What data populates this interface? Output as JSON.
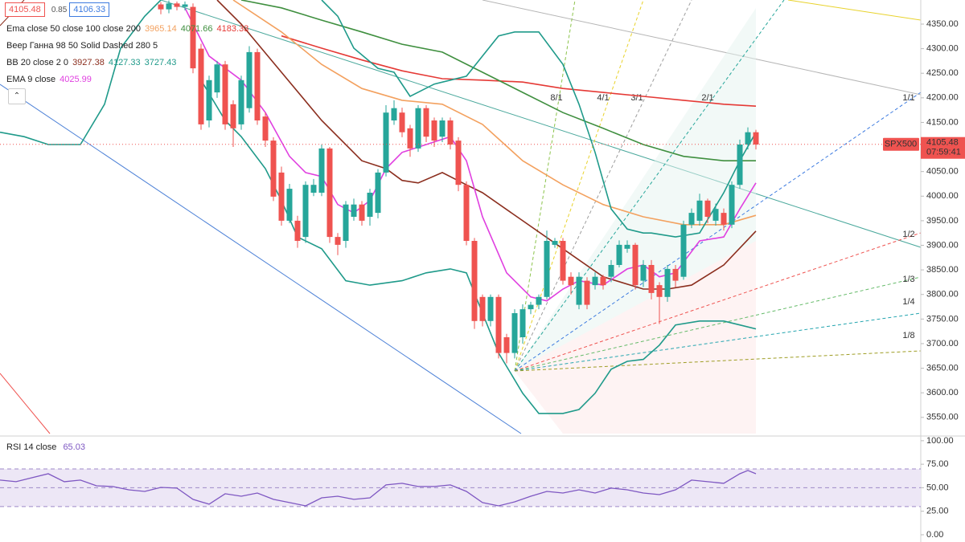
{
  "chart_data": [
    {
      "type": "candlestick",
      "symbol": "SPX500",
      "last_price": 4105.48,
      "time_label": "07:59:41",
      "bid": 4105.48,
      "spread": 0.85,
      "ask": 4106.33,
      "up_color": "#26a69a",
      "down_color": "#ef5350",
      "xlim": [
        -20,
        94.5
      ],
      "ylim": [
        3517,
        4399
      ],
      "yticks": [
        {
          "value": 3550,
          "label": "3550.00"
        },
        {
          "value": 3600,
          "label": "3600.00"
        },
        {
          "value": 3650,
          "label": "3650.00"
        },
        {
          "value": 3700,
          "label": "3700.00"
        },
        {
          "value": 3750,
          "label": "3750.00"
        },
        {
          "value": 3800,
          "label": "3800.00"
        },
        {
          "value": 3850,
          "label": "3850.00"
        },
        {
          "value": 3900,
          "label": "3900.00"
        },
        {
          "value": 3950,
          "label": "3950.00"
        },
        {
          "value": 4000,
          "label": "4000.00"
        },
        {
          "value": 4050,
          "label": "4050.00"
        },
        {
          "value": 4100,
          "label": "4100.00"
        },
        {
          "value": 4150,
          "label": "4150.00"
        },
        {
          "value": 4200,
          "label": "4200.00"
        },
        {
          "value": 4250,
          "label": "4250.00"
        },
        {
          "value": 4300,
          "label": "4300.00"
        },
        {
          "value": 4350,
          "label": "4350.00"
        }
      ],
      "open": [
        4390,
        4380,
        4392,
        4385,
        4385,
        4300,
        4154,
        4211,
        4268,
        4187,
        4146,
        4179,
        4293,
        4162,
        4113,
        4048,
        3950,
        3950,
        3917,
        4007,
        4007,
        4097,
        3917,
        3909,
        3958,
        3983,
        3958,
        3966,
        4048,
        4154,
        4170,
        4138,
        4097,
        4179,
        4154,
        4121,
        4154,
        4113,
        4023,
        3909,
        3795,
        3746,
        3795,
        3713,
        3681,
        3713,
        3770,
        3779,
        3795,
        3901,
        3909,
        3836,
        3779,
        3828,
        3819,
        3836,
        3836,
        3860,
        3893,
        3901,
        3828,
        3860,
        3819,
        3795,
        3852,
        3836,
        3942,
        3950,
        3991,
        3950,
        3966,
        3942,
        4023,
        4105,
        4130
      ],
      "high": [
        4395,
        4398,
        4396,
        4396,
        4392,
        4310,
        4245,
        4275,
        4275,
        4195,
        4245,
        4305,
        4300,
        4170,
        4120,
        4060,
        4025,
        3960,
        4030,
        4035,
        4105,
        4100,
        3925,
        3990,
        3995,
        3990,
        4015,
        4055,
        4185,
        4195,
        4180,
        4145,
        4185,
        4185,
        4160,
        4160,
        4160,
        4120,
        4030,
        3915,
        3800,
        3800,
        3800,
        3720,
        3770,
        3780,
        3785,
        3800,
        3930,
        3915,
        3915,
        3845,
        3845,
        3835,
        3845,
        3840,
        3870,
        3910,
        3910,
        3905,
        3870,
        3870,
        3825,
        3860,
        3860,
        3950,
        3975,
        4005,
        3995,
        3985,
        3975,
        4030,
        4115,
        4140,
        4135
      ],
      "low": [
        4370,
        4372,
        4378,
        4378,
        4250,
        4135,
        4140,
        4200,
        4135,
        4100,
        4135,
        4170,
        4145,
        4100,
        3990,
        3940,
        3945,
        3895,
        3905,
        4000,
        4000,
        3905,
        3880,
        3895,
        3950,
        3940,
        3940,
        3955,
        4040,
        4145,
        4120,
        4080,
        4090,
        4110,
        4100,
        4110,
        4095,
        4010,
        3900,
        3730,
        3735,
        3735,
        3670,
        3660,
        3670,
        3700,
        3760,
        3770,
        3790,
        3895,
        3820,
        3800,
        3770,
        3770,
        3810,
        3810,
        3825,
        3855,
        3885,
        3810,
        3815,
        3790,
        3740,
        3785,
        3815,
        3830,
        3935,
        3940,
        3945,
        3940,
        3930,
        3935,
        4015,
        4095,
        4095
      ],
      "close": [
        4380,
        4392,
        4385,
        4390,
        4260,
        4146,
        4236,
        4268,
        4146,
        4138,
        4236,
        4293,
        4154,
        4113,
        3999,
        3950,
        4015,
        3909,
        4023,
        4023,
        4097,
        3917,
        3901,
        3983,
        3983,
        3950,
        4007,
        4048,
        4170,
        4179,
        4130,
        4097,
        4179,
        4121,
        4113,
        4154,
        4105,
        4023,
        3909,
        3746,
        3746,
        3795,
        3681,
        3681,
        3762,
        3770,
        3779,
        3795,
        3909,
        3909,
        3828,
        3819,
        3836,
        3779,
        3836,
        3819,
        3860,
        3901,
        3901,
        3819,
        3860,
        3803,
        3795,
        3852,
        3828,
        3942,
        3966,
        3991,
        3958,
        3974,
        3942,
        4023,
        4105,
        4130,
        4105
      ],
      "overlays": [
        {
          "color": "#e53935",
          "x": [
            15,
            20,
            25,
            30,
            35,
            40,
            45,
            50,
            55,
            60,
            65,
            70,
            74
          ],
          "values": [
            4326,
            4301,
            4277,
            4255,
            4239,
            4236,
            4232,
            4219,
            4211,
            4203,
            4195,
            4187,
            4183
          ]
        },
        {
          "color": "#3f8f3f",
          "x": [
            10,
            15,
            20,
            25,
            30,
            35,
            40,
            45,
            50,
            55,
            60,
            65,
            70,
            74
          ],
          "values": [
            4399,
            4383,
            4358,
            4334,
            4309,
            4293,
            4252,
            4211,
            4170,
            4138,
            4105,
            4081,
            4072,
            4072
          ]
        },
        {
          "color": "#f3a15f",
          "x": [
            9,
            15,
            20,
            25,
            30,
            35,
            40,
            45,
            50,
            55,
            60,
            65,
            70,
            74
          ],
          "values": [
            4399,
            4334,
            4268,
            4219,
            4195,
            4187,
            4146,
            4072,
            4023,
            3983,
            3958,
            3942,
            3942,
            3961
          ]
        },
        {
          "color": "#8b2e1e",
          "x": [
            7,
            10,
            15,
            20,
            25,
            28,
            30,
            32,
            35,
            38,
            40,
            45,
            50,
            55,
            60,
            63,
            66,
            70,
            74
          ],
          "values": [
            4399,
            4350,
            4252,
            4154,
            4072,
            4056,
            4032,
            4027,
            4048,
            4023,
            4007,
            3950,
            3893,
            3836,
            3811,
            3811,
            3819,
            3860,
            3929
          ]
        },
        {
          "color": "#1f9a8a",
          "x": [
            -20,
            -17,
            -14,
            -10,
            -7,
            -5,
            -2,
            0,
            10,
            20,
            22,
            24,
            27,
            29,
            31,
            34,
            36,
            38,
            40,
            42,
            44,
            47,
            50,
            52,
            54,
            56,
            58,
            60,
            61,
            64,
            67,
            70,
            72,
            74
          ],
          "values": [
            4130,
            4121,
            4105,
            4105,
            4187,
            4301,
            4366,
            4399,
            null,
            4399,
            4366,
            4301,
            4260,
            4252,
            4203,
            4228,
            4236,
            4244,
            4285,
            4326,
            4334,
            4334,
            4268,
            4187,
            4089,
            3974,
            3933,
            3925,
            3925,
            3917,
            3925,
            4007,
            4072,
            4130
          ]
        },
        {
          "color": "#1f9a8a",
          "x": [
            5,
            8,
            10,
            13,
            15,
            17,
            20,
            23,
            26,
            30,
            33,
            36,
            38,
            40,
            42,
            45,
            47,
            50,
            52,
            54,
            56,
            58,
            60,
            62,
            64,
            67,
            70,
            72,
            74
          ],
          "values": [
            4236,
            4154,
            4121,
            4056,
            3991,
            3917,
            3893,
            3828,
            3819,
            3828,
            3844,
            3852,
            3844,
            3762,
            3681,
            3599,
            3558,
            3558,
            3566,
            3599,
            3648,
            3664,
            3668,
            3697,
            3738,
            3746,
            3746,
            3738,
            3730
          ]
        },
        {
          "color": "#e040e0",
          "x": [
            3,
            6,
            10,
            13,
            16,
            18,
            20,
            22,
            24,
            26,
            28,
            30,
            33,
            36,
            38,
            40,
            43,
            46,
            48,
            50,
            52,
            55,
            58,
            60,
            62,
            64,
            67,
            70,
            72,
            74
          ],
          "values": [
            4383,
            4285,
            4236,
            4170,
            4081,
            4048,
            4040,
            3983,
            3966,
            3991,
            4056,
            4089,
            4105,
            4121,
            4072,
            3958,
            3844,
            3795,
            3787,
            3811,
            3828,
            3819,
            3852,
            3860,
            3836,
            3844,
            3909,
            3917,
            3974,
            4027
          ]
        }
      ],
      "legend": [
        {
          "label": "Ema close 50 close 100 close 200",
          "values": [
            3965.14,
            4071.66,
            4183.33
          ],
          "colors": [
            "#f3a15f",
            "#3f8f3f",
            "#e53935"
          ]
        },
        {
          "label": "Веер Ганна 98 50 Solid Dashed 280 5",
          "values": [],
          "colors": []
        },
        {
          "label": "BB 20 close 2 0",
          "values": [
            3927.38,
            4127.33,
            3727.43
          ],
          "colors": [
            "#8b2e1e",
            "#1f9a8a",
            "#1f9a8a"
          ]
        },
        {
          "label": "EMA 9 close",
          "values": [
            4025.99
          ],
          "colors": [
            "#e040e0"
          ]
        }
      ],
      "gann_fan": [
        {
          "label": "8/1",
          "color": "#8bc34a"
        },
        {
          "label": "4/1",
          "color": "#e8d22a"
        },
        {
          "label": "3/1",
          "color": "#9e9e9e"
        },
        {
          "label": "2/1",
          "color": "#26a69a"
        },
        {
          "label": "1/1",
          "color": "#3d7be0"
        },
        {
          "label": "1/2",
          "color": "#ef5350"
        },
        {
          "label": "1/3",
          "color": "#66bb6a"
        },
        {
          "label": "1/4",
          "color": "#26a6b0"
        },
        {
          "label": "1/8",
          "color": "#9e9d24"
        }
      ]
    },
    {
      "type": "line",
      "title": "RSI 14 close",
      "last_value": 65.03,
      "color": "#7e57c2",
      "xlim": [
        -20,
        94.5
      ],
      "ylim": [
        -7.7,
        105
      ],
      "yticks": [
        {
          "value": 100,
          "label": "100.00"
        },
        {
          "value": 75,
          "label": "75.00"
        },
        {
          "value": 50,
          "label": "50.00"
        },
        {
          "value": 25,
          "label": "25.00"
        },
        {
          "value": 0,
          "label": "0.00"
        }
      ],
      "bands": [
        70,
        50,
        30
      ],
      "x": [
        -20,
        -18,
        -16,
        -14,
        -12,
        -10,
        -8,
        -6,
        -4,
        -2,
        0,
        2,
        4,
        6,
        8,
        10,
        12,
        14,
        16,
        18,
        20,
        22,
        24,
        26,
        28,
        30,
        32,
        34,
        36,
        38,
        40,
        42,
        44,
        46,
        48,
        50,
        52,
        54,
        56,
        58,
        60,
        62,
        64,
        66,
        68,
        70,
        72,
        73,
        74
      ],
      "values": [
        58.1,
        56.4,
        60.7,
        64.9,
        56.4,
        58.1,
        52.1,
        51.3,
        47.8,
        46.1,
        50.4,
        49.6,
        37.6,
        32.5,
        43.6,
        41.0,
        44.4,
        37.6,
        34.2,
        30.7,
        39.3,
        41.0,
        37.6,
        39.3,
        53.0,
        54.7,
        51.3,
        51.3,
        53.0,
        46.1,
        34.2,
        30.7,
        35.0,
        41.0,
        46.1,
        44.4,
        47.8,
        44.4,
        49.6,
        47.8,
        44.4,
        42.7,
        47.8,
        58.1,
        56.4,
        54.7,
        64.9,
        68.4,
        64.9
      ]
    }
  ]
}
